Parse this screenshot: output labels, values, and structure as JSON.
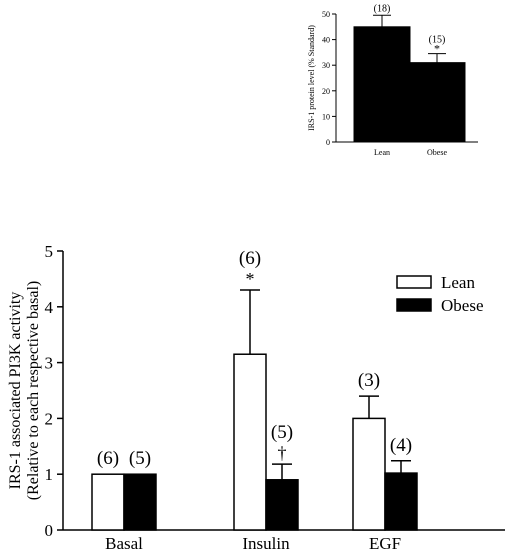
{
  "chart_data": [
    {
      "type": "bar",
      "ylabel": "IRS-1 protein level (% Standard)",
      "ylim": [
        0,
        50
      ],
      "yticks": [
        0,
        10,
        20,
        30,
        40,
        50
      ],
      "categories": [
        "Lean",
        "Obese"
      ],
      "values": [
        45,
        31
      ],
      "errors": [
        4.5,
        3.5
      ],
      "n_labels": [
        "(18)",
        "(15)"
      ],
      "markers": [
        "",
        "*"
      ],
      "bar_colors": [
        "#000000",
        "#000000"
      ],
      "grid": false
    },
    {
      "type": "bar",
      "ylabel_lines": [
        "IRS-1 associated PI3K activity",
        "(Relative to each respective basal)"
      ],
      "ylim": [
        0,
        5
      ],
      "yticks": [
        0,
        1,
        2,
        3,
        4,
        5
      ],
      "categories": [
        "Basal",
        "Insulin",
        "EGF"
      ],
      "legend_position": "top-right",
      "grid": false,
      "series": [
        {
          "name": "Lean",
          "fill": "#ffffff",
          "values": [
            1.0,
            3.15,
            2.0
          ],
          "errors": [
            0,
            1.15,
            0.4
          ],
          "n_labels": [
            "(6)",
            "(6)",
            "(3)"
          ],
          "markers": [
            "",
            "*",
            ""
          ]
        },
        {
          "name": "Obese",
          "fill": "#000000",
          "values": [
            1.0,
            0.9,
            1.02
          ],
          "errors": [
            0,
            0.28,
            0.22
          ],
          "n_labels": [
            "(5)",
            "(5)",
            "(4)"
          ],
          "markers": [
            "",
            "†",
            ""
          ]
        }
      ]
    }
  ]
}
